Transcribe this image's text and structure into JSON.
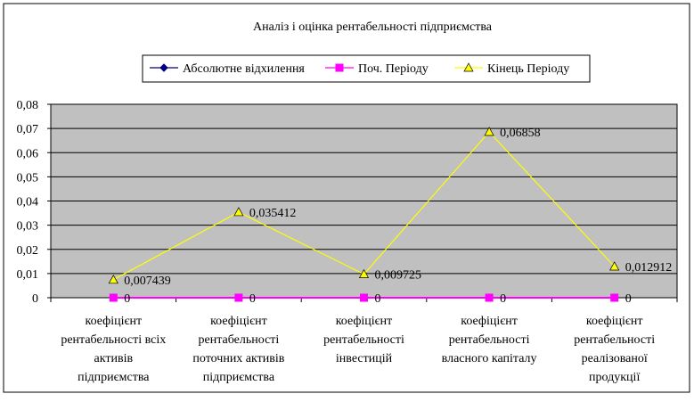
{
  "colors": {
    "plot_bg": "#c0c0c0",
    "grid": "#000000",
    "series_absolute": "#000080",
    "series_start": "#ff00ff",
    "series_end": "#ffff00",
    "frame": "#000000"
  },
  "chart_data": {
    "type": "line",
    "title": "Аналіз і оцінка рентабельності підприємства",
    "xlabel": "",
    "ylabel": "",
    "ylim": [
      0,
      0.08
    ],
    "yticks": [
      "0,08",
      "0,07",
      "0,06",
      "0,05",
      "0,04",
      "0,03",
      "0,02",
      "0,01",
      "0"
    ],
    "grid": true,
    "legend_position": "top",
    "categories": [
      [
        "коефіцієнт",
        "рентабельності всіх",
        "активів",
        "підприємства"
      ],
      [
        "коефіцієнт",
        "рентабельності",
        "поточних активів",
        "підприємства"
      ],
      [
        "коефіцієнт",
        "рентабельності",
        "інвестицій"
      ],
      [
        "коефіцієнт",
        "рентабельності",
        "власного капіталу"
      ],
      [
        "коефіцієнт",
        "рентабельності",
        "реалізованої",
        "продукції"
      ]
    ],
    "series": [
      {
        "name": "Абсолютне відхилення",
        "marker": "diamond",
        "values": [
          0,
          0,
          0,
          0,
          0
        ],
        "labels": null
      },
      {
        "name": "Поч. Періоду",
        "marker": "square",
        "values": [
          0,
          0,
          0,
          0,
          0
        ],
        "labels": [
          "0",
          "0",
          "0",
          "0",
          "0"
        ]
      },
      {
        "name": "Кінець Періоду",
        "marker": "triangle",
        "values": [
          0.007439,
          0.035412,
          0.009725,
          0.06858,
          0.012912
        ],
        "labels": [
          "0,007439",
          "0,035412",
          "0,009725",
          "0,06858",
          "0,012912"
        ]
      }
    ]
  }
}
